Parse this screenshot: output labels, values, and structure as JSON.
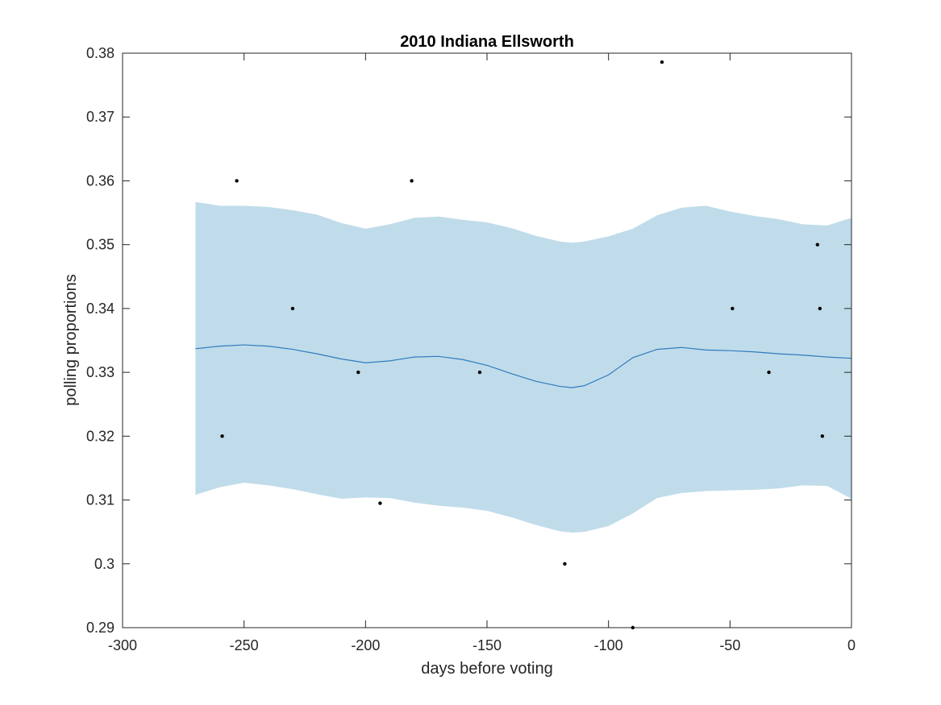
{
  "chart_data": {
    "type": "scatter",
    "title": "2010 Indiana Ellsworth",
    "xlabel": "days before voting",
    "ylabel": "polling proportions",
    "xlim": [
      -300,
      0
    ],
    "ylim": [
      0.29,
      0.38
    ],
    "xticks": [
      -300,
      -250,
      -200,
      -150,
      -100,
      -50,
      0
    ],
    "xtick_labels": [
      "-300",
      "-250",
      "-200",
      "-150",
      "-100",
      "-50",
      "0"
    ],
    "yticks": [
      0.29,
      0.3,
      0.31,
      0.32,
      0.33,
      0.34,
      0.35,
      0.36,
      0.37,
      0.38
    ],
    "ytick_labels": [
      "0.29",
      "0.3",
      "0.31",
      "0.32",
      "0.33",
      "0.34",
      "0.35",
      "0.36",
      "0.37",
      "0.38"
    ],
    "grid": false,
    "colors": {
      "band": "#c0dcea",
      "trend": "#2f7bbf",
      "points": "#000000",
      "axes": "#262626"
    },
    "points": [
      {
        "x": -259,
        "y": 0.32
      },
      {
        "x": -253,
        "y": 0.36
      },
      {
        "x": -230,
        "y": 0.34
      },
      {
        "x": -203,
        "y": 0.33
      },
      {
        "x": -194,
        "y": 0.3095
      },
      {
        "x": -181,
        "y": 0.36
      },
      {
        "x": -153,
        "y": 0.33
      },
      {
        "x": -118,
        "y": 0.3
      },
      {
        "x": -90,
        "y": 0.29
      },
      {
        "x": -78,
        "y": 0.3786
      },
      {
        "x": -49,
        "y": 0.34
      },
      {
        "x": -34,
        "y": 0.33
      },
      {
        "x": -14,
        "y": 0.35
      },
      {
        "x": -13,
        "y": 0.34
      },
      {
        "x": -12,
        "y": 0.32
      }
    ],
    "trend": {
      "x": [
        -270,
        -260,
        -250,
        -240,
        -230,
        -220,
        -210,
        -200,
        -190,
        -180,
        -170,
        -160,
        -150,
        -140,
        -130,
        -120,
        -115,
        -110,
        -100,
        -90,
        -80,
        -70,
        -60,
        -50,
        -40,
        -30,
        -20,
        -10,
        0
      ],
      "y": [
        0.3337,
        0.3341,
        0.3343,
        0.3341,
        0.3336,
        0.3329,
        0.3321,
        0.3315,
        0.3318,
        0.3324,
        0.3325,
        0.332,
        0.3311,
        0.3298,
        0.3286,
        0.3278,
        0.3276,
        0.3279,
        0.3296,
        0.3323,
        0.3336,
        0.3339,
        0.3335,
        0.3334,
        0.3332,
        0.3329,
        0.3327,
        0.3324,
        0.3322
      ]
    },
    "band": {
      "x": [
        -270,
        -260,
        -250,
        -240,
        -230,
        -220,
        -210,
        -200,
        -190,
        -180,
        -170,
        -160,
        -150,
        -140,
        -130,
        -120,
        -115,
        -110,
        -100,
        -90,
        -80,
        -70,
        -60,
        -50,
        -40,
        -30,
        -20,
        -10,
        0
      ],
      "upper": [
        0.3567,
        0.3561,
        0.3561,
        0.3559,
        0.3554,
        0.3547,
        0.3534,
        0.3525,
        0.3532,
        0.3542,
        0.3544,
        0.3539,
        0.3535,
        0.3526,
        0.3514,
        0.3505,
        0.3503,
        0.3505,
        0.3513,
        0.3525,
        0.3546,
        0.3558,
        0.3561,
        0.3552,
        0.3545,
        0.354,
        0.3532,
        0.353,
        0.3542
      ],
      "lower": [
        0.3108,
        0.312,
        0.3127,
        0.3123,
        0.3117,
        0.3109,
        0.3102,
        0.3104,
        0.3103,
        0.3096,
        0.3091,
        0.3088,
        0.3083,
        0.3073,
        0.3061,
        0.3051,
        0.3049,
        0.305,
        0.3059,
        0.3079,
        0.3103,
        0.3111,
        0.3114,
        0.3115,
        0.3116,
        0.3118,
        0.3123,
        0.3122,
        0.3102
      ]
    }
  }
}
